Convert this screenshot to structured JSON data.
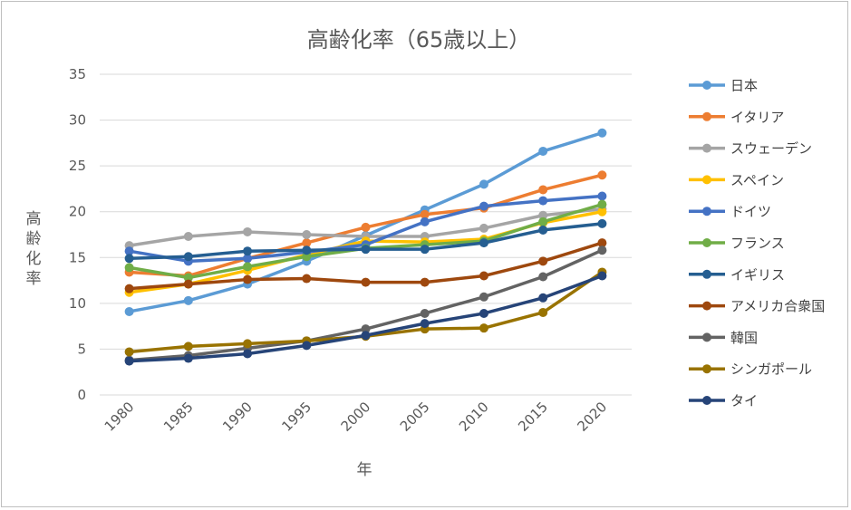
{
  "chart_data": {
    "type": "line",
    "title": "高齢化率（65歳以上）",
    "xlabel": "年",
    "ylabel": "高齢化率",
    "categories": [
      "1980",
      "1985",
      "1990",
      "1995",
      "2000",
      "2005",
      "2010",
      "2015",
      "2020"
    ],
    "yticks": [
      "0",
      "5",
      "10",
      "15",
      "20",
      "25",
      "30",
      "35"
    ],
    "ylim": [
      0,
      35
    ],
    "grid": true,
    "legend_position": "right",
    "series": [
      {
        "name": "日本",
        "color": "#5B9BD5",
        "values": [
          9.1,
          10.3,
          12.1,
          14.6,
          17.4,
          20.2,
          23.0,
          26.6,
          28.6
        ]
      },
      {
        "name": "イタリア",
        "color": "#ED7D31",
        "values": [
          13.4,
          13.0,
          14.9,
          16.6,
          18.3,
          19.7,
          20.4,
          22.4,
          24.0
        ]
      },
      {
        "name": "スウェーデン",
        "color": "#A5A5A5",
        "values": [
          16.3,
          17.3,
          17.8,
          17.5,
          17.3,
          17.3,
          18.2,
          19.6,
          20.3
        ]
      },
      {
        "name": "スペイン",
        "color": "#FFC000",
        "values": [
          11.2,
          12.1,
          13.6,
          15.3,
          16.8,
          16.7,
          17.0,
          18.8,
          20.0
        ]
      },
      {
        "name": "ドイツ",
        "color": "#4472C4",
        "values": [
          15.7,
          14.6,
          14.9,
          15.6,
          16.4,
          18.9,
          20.6,
          21.2,
          21.7
        ]
      },
      {
        "name": "フランス",
        "color": "#70AD47",
        "values": [
          13.9,
          12.8,
          14.0,
          15.1,
          16.0,
          16.4,
          16.8,
          18.9,
          20.8
        ]
      },
      {
        "name": "イギリス",
        "color": "#255E91",
        "values": [
          14.9,
          15.1,
          15.7,
          15.8,
          15.9,
          15.9,
          16.6,
          18.0,
          18.7
        ]
      },
      {
        "name": "アメリカ合衆国",
        "color": "#9E480E",
        "values": [
          11.6,
          12.1,
          12.6,
          12.7,
          12.3,
          12.3,
          13.0,
          14.6,
          16.6
        ]
      },
      {
        "name": "韓国",
        "color": "#636363",
        "values": [
          3.8,
          4.3,
          5.1,
          5.9,
          7.2,
          8.9,
          10.7,
          12.9,
          15.8
        ]
      },
      {
        "name": "シンガポール",
        "color": "#997300",
        "values": [
          4.7,
          5.3,
          5.6,
          5.9,
          6.4,
          7.2,
          7.3,
          9.0,
          13.4
        ]
      },
      {
        "name": "タイ",
        "color": "#264478",
        "values": [
          3.7,
          4.0,
          4.5,
          5.4,
          6.5,
          7.8,
          8.9,
          10.6,
          13.0
        ]
      }
    ]
  }
}
